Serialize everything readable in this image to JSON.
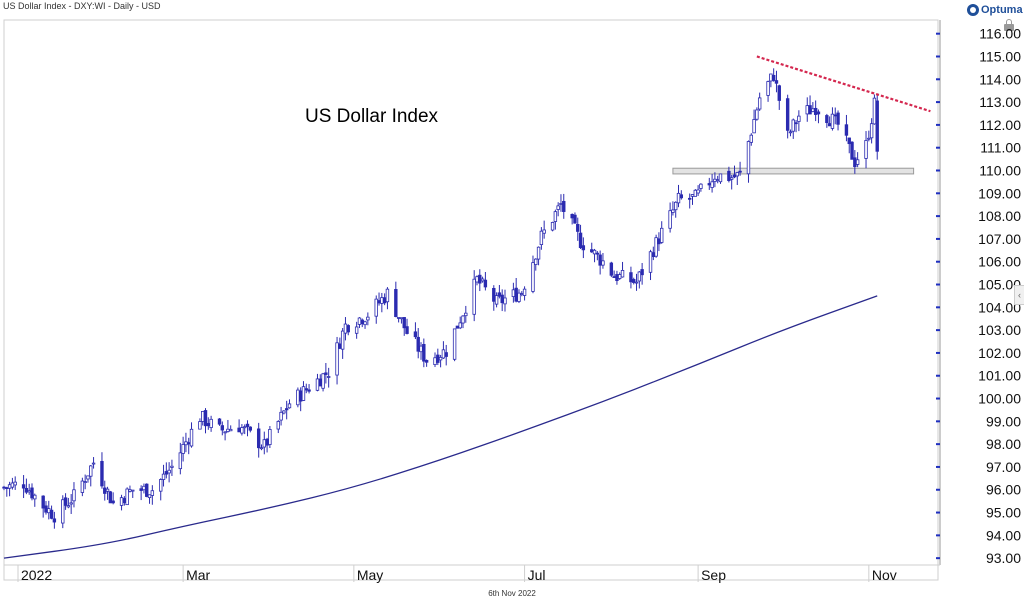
{
  "header": {
    "title": "US Dollar Index - DXY:WI - Daily - USD"
  },
  "logo": {
    "text": "Optuma"
  },
  "footer": {
    "date": "6th Nov 2022"
  },
  "colors": {
    "candle": "#2b2bb0",
    "moving_average": "#2a2a8c",
    "resistance": "#d4264e",
    "support_fill": "#e3e3e3",
    "support_stroke": "#9a9a9a"
  },
  "chart_data": {
    "type": "candlestick",
    "title": "US Dollar Index",
    "xlabel": "",
    "ylabel": "",
    "x_tick_labels": [
      "2022",
      "Mar",
      "May",
      "Jul",
      "Sep",
      "Nov"
    ],
    "y_tick_labels": [
      "116.00",
      "115.00",
      "114.00",
      "113.00",
      "112.00",
      "111.00",
      "110.00",
      "109.00",
      "108.00",
      "107.00",
      "106.00",
      "105.00",
      "104.00",
      "103.00",
      "102.00",
      "101.00",
      "100.00",
      "99.00",
      "98.00",
      "97.00",
      "96.00",
      "95.00",
      "94.00",
      "93.00"
    ],
    "ylim": [
      92.7,
      116.6
    ],
    "xlim": [
      "2021-12-27",
      "2022-11-25"
    ],
    "grid": false,
    "price_path": [
      [
        "2021-12-27",
        96.1
      ],
      [
        "2022-01-03",
        96.3
      ],
      [
        "2022-01-10",
        95.3
      ],
      [
        "2022-01-14",
        94.9
      ],
      [
        "2022-01-21",
        95.7
      ],
      [
        "2022-01-28",
        97.2
      ],
      [
        "2022-02-04",
        95.4
      ],
      [
        "2022-02-11",
        96.0
      ],
      [
        "2022-02-18",
        96.0
      ],
      [
        "2022-02-25",
        97.0
      ],
      [
        "2022-03-07",
        99.2
      ],
      [
        "2022-03-14",
        98.6
      ],
      [
        "2022-03-21",
        98.8
      ],
      [
        "2022-03-30",
        97.9
      ],
      [
        "2022-04-08",
        99.8
      ],
      [
        "2022-04-14",
        100.4
      ],
      [
        "2022-04-22",
        101.2
      ],
      [
        "2022-04-28",
        103.2
      ],
      [
        "2022-05-06",
        103.7
      ],
      [
        "2022-05-13",
        104.6
      ],
      [
        "2022-05-20",
        102.9
      ],
      [
        "2022-05-27",
        101.7
      ],
      [
        "2022-06-03",
        102.1
      ],
      [
        "2022-06-14",
        105.2
      ],
      [
        "2022-06-21",
        104.2
      ],
      [
        "2022-06-30",
        104.7
      ],
      [
        "2022-07-07",
        107.1
      ],
      [
        "2022-07-14",
        108.5
      ],
      [
        "2022-07-21",
        106.9
      ],
      [
        "2022-07-29",
        106.0
      ],
      [
        "2022-08-02",
        105.4
      ],
      [
        "2022-08-10",
        105.1
      ],
      [
        "2022-08-17",
        106.8
      ],
      [
        "2022-08-25",
        108.7
      ],
      [
        "2022-08-31",
        108.8
      ],
      [
        "2022-09-07",
        109.8
      ],
      [
        "2022-09-13",
        109.7
      ],
      [
        "2022-09-16",
        109.8
      ],
      [
        "2022-09-23",
        113.2
      ],
      [
        "2022-09-28",
        114.2
      ],
      [
        "2022-10-03",
        111.5
      ],
      [
        "2022-10-07",
        112.4
      ],
      [
        "2022-10-13",
        112.8
      ],
      [
        "2022-10-21",
        112.0
      ],
      [
        "2022-10-27",
        110.4
      ],
      [
        "2022-10-31",
        111.1
      ],
      [
        "2022-11-03",
        112.9
      ],
      [
        "2022-11-04",
        110.9
      ]
    ],
    "moving_average": {
      "period": "unlabeled",
      "x": [
        "2021-12-27",
        "2022-02-01",
        "2022-03-01",
        "2022-04-01",
        "2022-05-01",
        "2022-06-01",
        "2022-07-01",
        "2022-08-01",
        "2022-09-01",
        "2022-10-01",
        "2022-11-04"
      ],
      "values": [
        93.0,
        93.6,
        94.4,
        95.2,
        96.1,
        97.3,
        98.6,
        100.0,
        101.5,
        103.0,
        104.5
      ]
    },
    "resistance_line": {
      "x": [
        "2022-09-22",
        "2022-11-23"
      ],
      "values": [
        115.0,
        112.6
      ]
    },
    "support_zone": {
      "x": [
        "2022-08-23",
        "2022-11-17"
      ],
      "low": 109.85,
      "high": 110.1
    },
    "annotations": [
      "US Dollar Index"
    ]
  }
}
